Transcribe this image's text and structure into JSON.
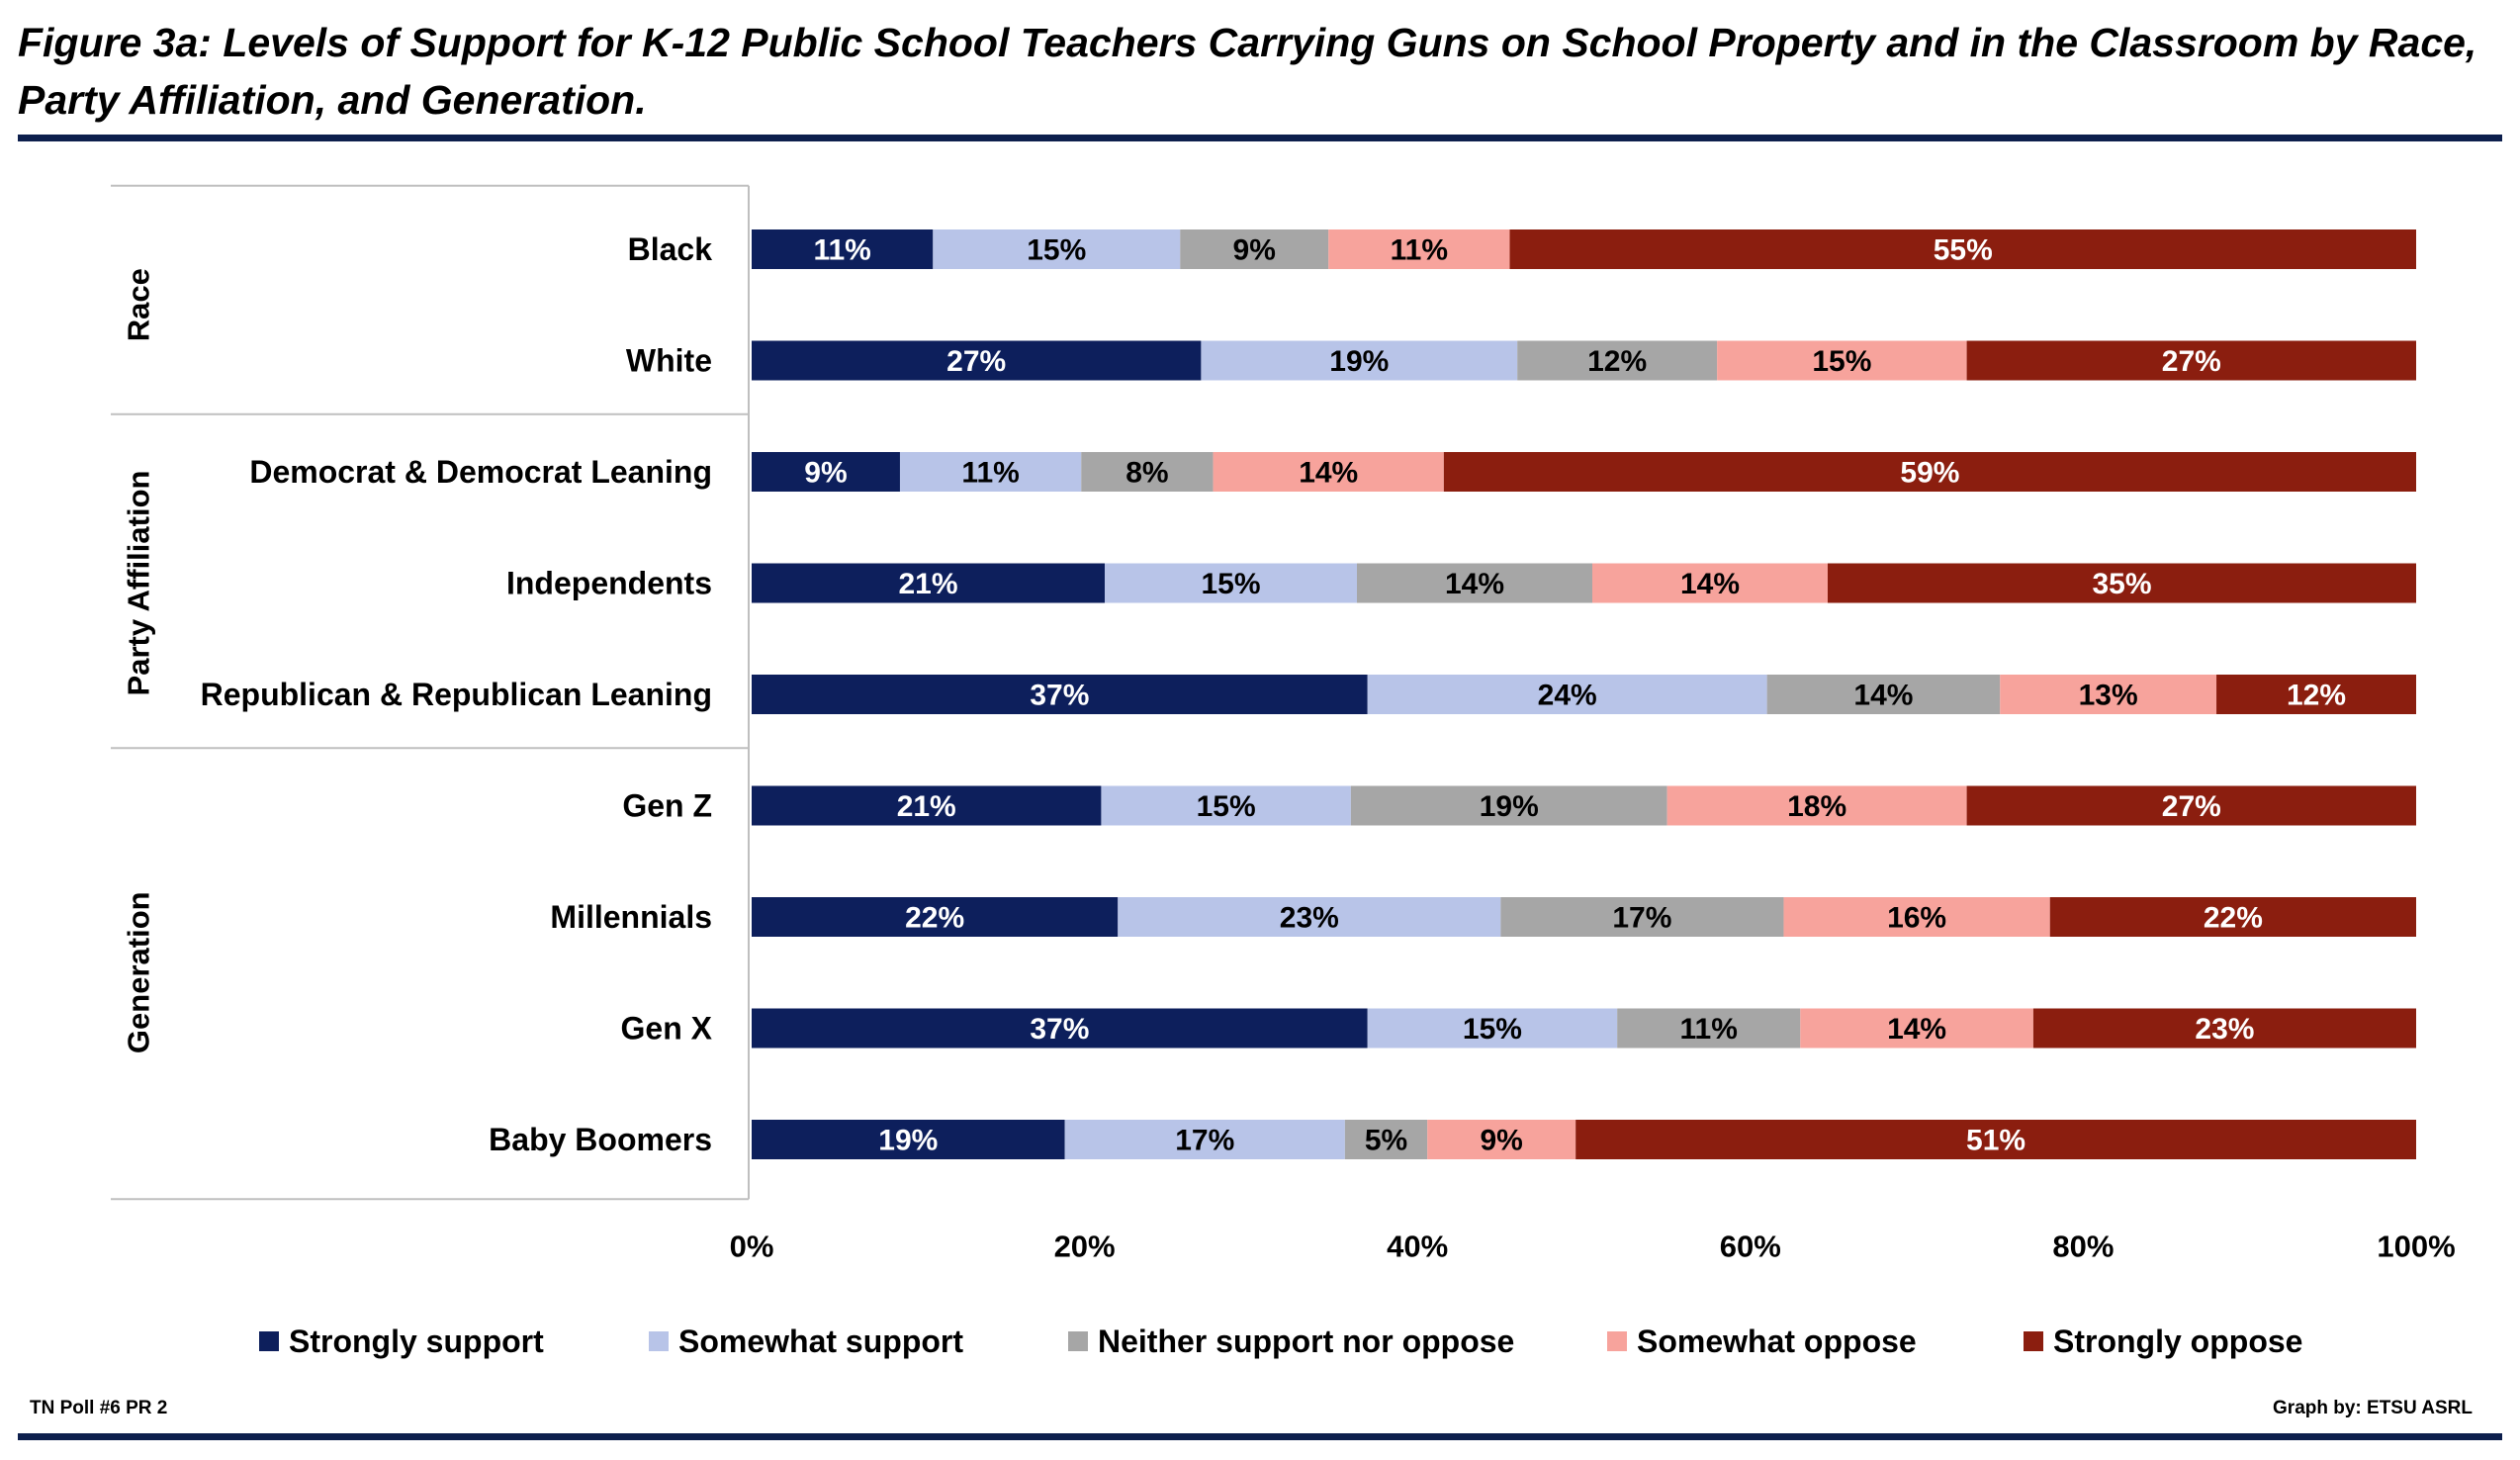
{
  "figure": {
    "title": "Figure 3a: Levels of Support for K-12 Public School Teachers Carrying Guns on School Property and in the Classroom by Race, Party Affiliation, and Generation.",
    "footer_left": "TN Poll #6 PR 2",
    "footer_right": "Graph by: ETSU ASRL"
  },
  "chart_data": {
    "type": "bar",
    "orientation": "horizontal",
    "stacked": "percent",
    "title": "Figure 3a: Levels of Support for K-12 Public School Teachers Carrying Guns on School Property and in the Classroom by Race, Party Affiliation, and Generation.",
    "xlabel": "",
    "ylabel": "",
    "xlim": [
      0,
      100
    ],
    "x_ticks": [
      "0%",
      "20%",
      "40%",
      "60%",
      "80%",
      "100%"
    ],
    "legend_position": "bottom",
    "grid": false,
    "groups": [
      {
        "name": "Race",
        "categories": [
          "Black",
          "White"
        ]
      },
      {
        "name": "Party Affiliation",
        "categories": [
          "Democrat & Democrat Leaning",
          "Independents",
          "Republican & Republican Leaning"
        ]
      },
      {
        "name": "Generation",
        "categories": [
          "Gen Z",
          "Millennials",
          "Gen X",
          "Baby Boomers"
        ]
      }
    ],
    "categories": [
      "Black",
      "White",
      "Democrat & Democrat Leaning",
      "Independents",
      "Republican & Republican Leaning",
      "Gen Z",
      "Millennials",
      "Gen X",
      "Baby Boomers"
    ],
    "series": [
      {
        "name": "Strongly support",
        "color": "#0d1f5c",
        "label_color": "#ffffff",
        "values": [
          11,
          27,
          9,
          21,
          37,
          21,
          22,
          37,
          19
        ]
      },
      {
        "name": "Somewhat support",
        "color": "#b8c4e8",
        "label_color": "#000000",
        "values": [
          15,
          19,
          11,
          15,
          24,
          15,
          23,
          15,
          17
        ]
      },
      {
        "name": "Neither support nor oppose",
        "color": "#a6a6a6",
        "label_color": "#000000",
        "values": [
          9,
          12,
          8,
          14,
          14,
          19,
          17,
          11,
          5
        ]
      },
      {
        "name": "Somewhat oppose",
        "color": "#f7a39c",
        "label_color": "#000000",
        "values": [
          11,
          15,
          14,
          14,
          13,
          18,
          16,
          14,
          9
        ]
      },
      {
        "name": "Strongly oppose",
        "color": "#8b1e0f",
        "label_color": "#ffffff",
        "values": [
          55,
          27,
          59,
          35,
          12,
          27,
          22,
          23,
          51
        ]
      }
    ]
  }
}
